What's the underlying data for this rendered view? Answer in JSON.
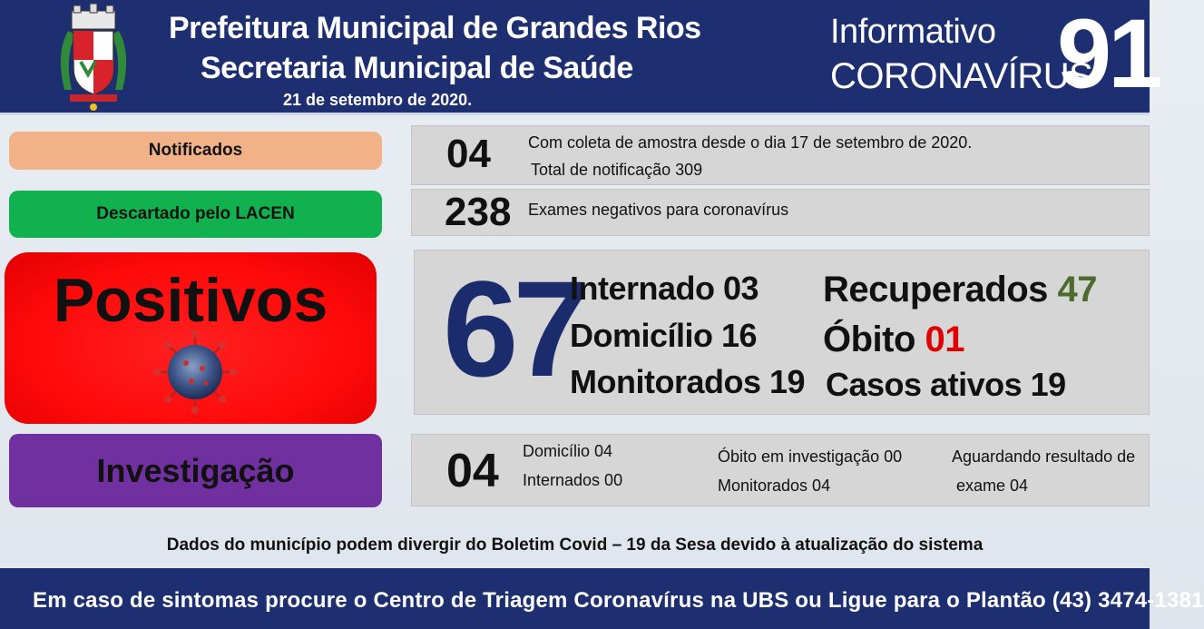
{
  "header": {
    "title_line1": "Prefeitura Municipal de Grandes Rios",
    "title_line2": "Secretaria Municipal de Saúde",
    "date": "21 de setembro  de 2020.",
    "informativo_line1": "Informativo",
    "informativo_line2": "CORONAVÍRUS",
    "edition_number": "91"
  },
  "notificados": {
    "label": "Notificados",
    "value": "04",
    "line1": "Com coleta de amostra desde o dia 17 de setembro de 2020.",
    "line2": "Total de notificação  309"
  },
  "descartado": {
    "label": "Descartado  pelo LACEN",
    "value": "238",
    "text": "Exames negativos  para coronavírus"
  },
  "positivos": {
    "label": "Positivos",
    "value": "67",
    "internado": "Internado 03",
    "domicilio": "Domicílio 16",
    "monitorados": "Monitorados 19",
    "recuperados_label": "Recuperados",
    "recuperados_value": "47",
    "obito_label": "Óbito",
    "obito_value": "01",
    "casos_ativos": "Casos ativos 19"
  },
  "investigacao": {
    "label": "Investigação",
    "value": "04",
    "domicilio": "Domicílio 04",
    "internados": "Internados 00",
    "obito": "Óbito  em investigação  00",
    "monitorados": "Monitorados 04",
    "aguardando_line1": "Aguardando resultado de",
    "aguardando_line2": "exame 04"
  },
  "note": "Dados do município podem  divergir do Boletim  Covid – 19 da Sesa devido à atualização  do sistema",
  "footer": "Em caso de sintomas  procure  o Centro de Triagem  Coronavírus  na UBS ou Ligue  para o Plantão  (43) 3474-1381",
  "colors": {
    "header_bg": "#1d2f70",
    "notificados": "#f2b287",
    "descartado": "#12b14f",
    "positivos": "#ff0a0a",
    "investigacao": "#7030a0",
    "recuperados_value": "#4e6b2e",
    "obito_value": "#e00000",
    "big_number": "#1a2c6b"
  }
}
